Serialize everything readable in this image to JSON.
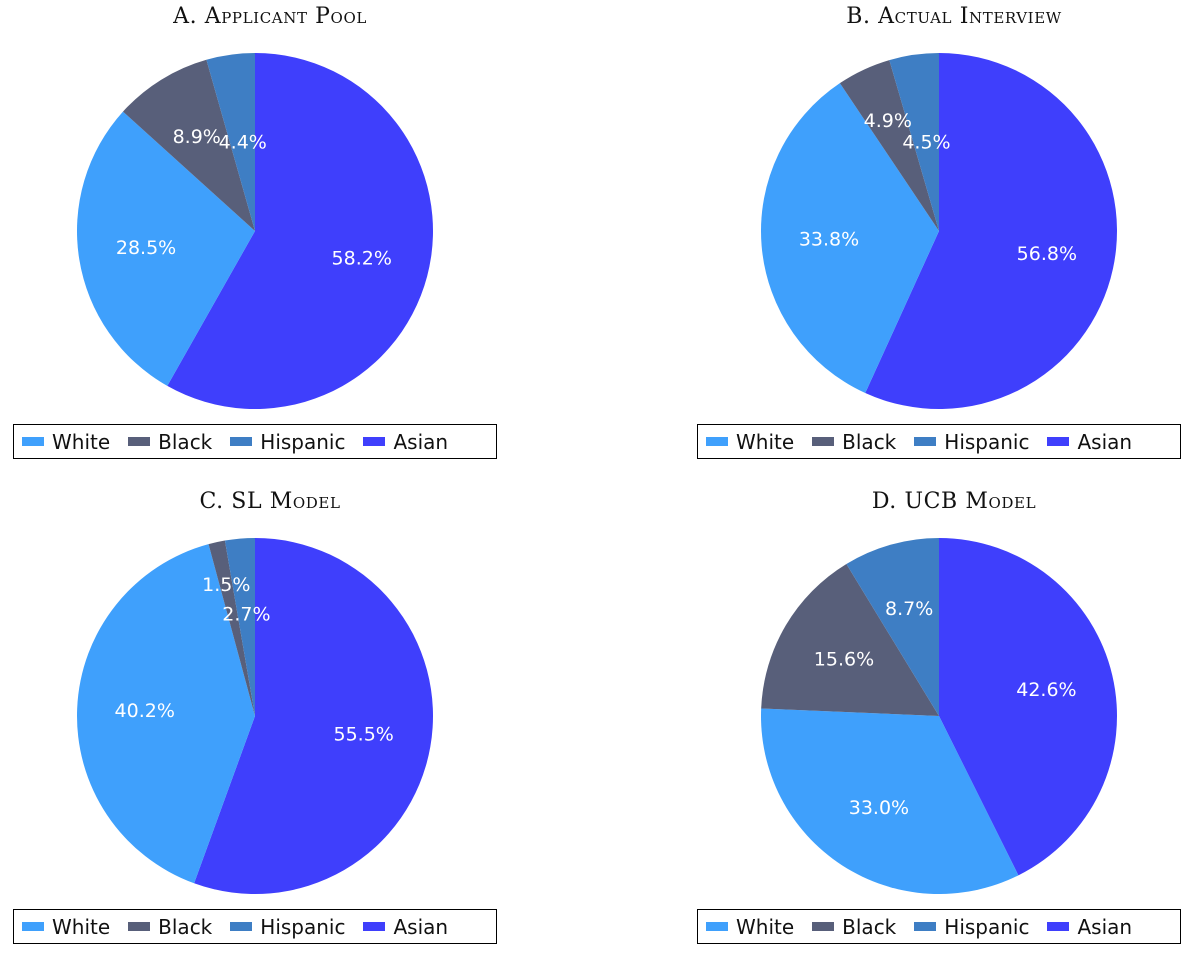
{
  "colors": {
    "White": "#3fa0fc",
    "Black": "#585f7a",
    "Hispanic": "#3e7ec4",
    "Asian": "#3f3ffc"
  },
  "legend": [
    "White",
    "Black",
    "Hispanic",
    "Asian"
  ],
  "chart_data": [
    {
      "type": "pie",
      "title": "A. Applicant Pool",
      "order": [
        "Asian",
        "White",
        "Black",
        "Hispanic"
      ],
      "slices": [
        {
          "label": "Asian",
          "value": 58.2,
          "text": "58.2%"
        },
        {
          "label": "White",
          "value": 28.5,
          "text": "28.5%"
        },
        {
          "label": "Black",
          "value": 8.9,
          "text": "8.9%"
        },
        {
          "label": "Hispanic",
          "value": 4.4,
          "text": "4.4%"
        }
      ],
      "legend_entries": [
        "White",
        "Black",
        "Hispanic",
        "Asian"
      ]
    },
    {
      "type": "pie",
      "title": "B. Actual Interview",
      "order": [
        "Asian",
        "White",
        "Black",
        "Hispanic"
      ],
      "slices": [
        {
          "label": "Asian",
          "value": 56.8,
          "text": "56.8%"
        },
        {
          "label": "White",
          "value": 33.8,
          "text": "33.8%"
        },
        {
          "label": "Black",
          "value": 4.9,
          "text": "4.9%"
        },
        {
          "label": "Hispanic",
          "value": 4.5,
          "text": "4.5%"
        }
      ],
      "legend_entries": [
        "White",
        "Black",
        "Hispanic",
        "Asian"
      ]
    },
    {
      "type": "pie",
      "title": "C. SL Model",
      "order": [
        "Asian",
        "White",
        "Black",
        "Hispanic"
      ],
      "slices": [
        {
          "label": "Asian",
          "value": 55.5,
          "text": "55.5%"
        },
        {
          "label": "White",
          "value": 40.2,
          "text": "40.2%"
        },
        {
          "label": "Black",
          "value": 1.5,
          "text": "1.5%"
        },
        {
          "label": "Hispanic",
          "value": 2.7,
          "text": "2.7%"
        }
      ],
      "legend_entries": [
        "White",
        "Black",
        "Hispanic",
        "Asian"
      ]
    },
    {
      "type": "pie",
      "title": "D. UCB Model",
      "order": [
        "Asian",
        "White",
        "Black",
        "Hispanic"
      ],
      "slices": [
        {
          "label": "Asian",
          "value": 42.6,
          "text": "42.6%"
        },
        {
          "label": "White",
          "value": 33.0,
          "text": "33.0%"
        },
        {
          "label": "Black",
          "value": 15.6,
          "text": "15.6%"
        },
        {
          "label": "Hispanic",
          "value": 8.7,
          "text": "8.7%"
        }
      ],
      "legend_entries": [
        "White",
        "Black",
        "Hispanic",
        "Asian"
      ]
    }
  ]
}
